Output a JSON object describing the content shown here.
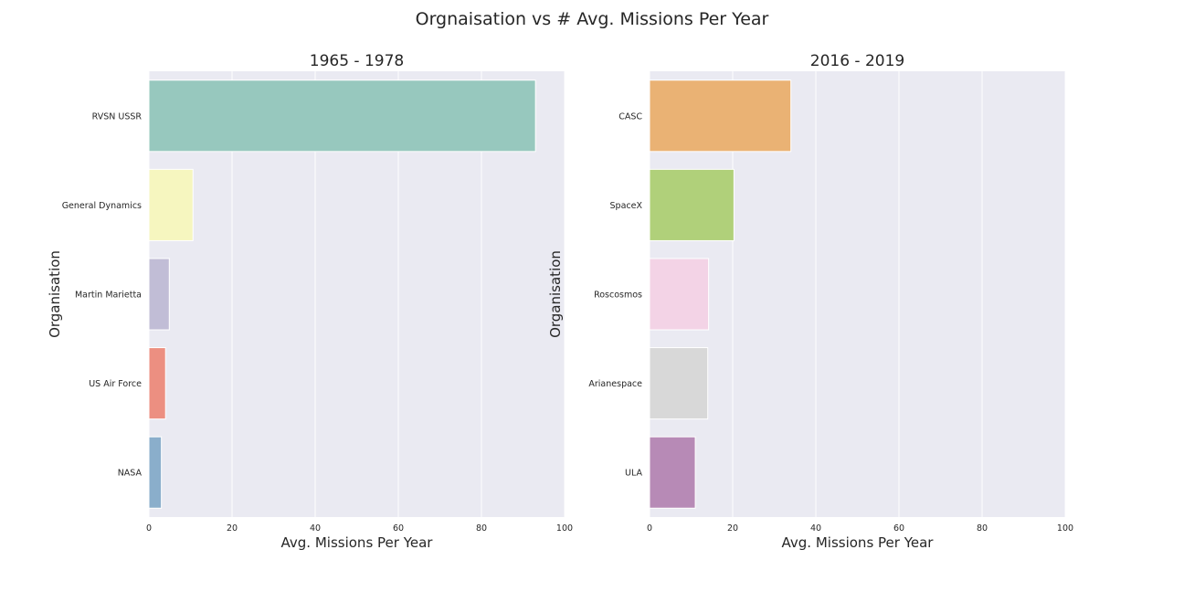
{
  "figure": {
    "title": "Orgnaisation vs # Avg. Missions Per Year"
  },
  "chart_data": [
    {
      "type": "bar",
      "orientation": "horizontal",
      "title": "1965 - 1978",
      "xlabel": "Avg. Missions Per Year",
      "ylabel": "Organisation",
      "categories": [
        "RVSN USSR",
        "General Dynamics",
        "Martin Marietta",
        "US Air Force",
        "NASA"
      ],
      "values": [
        93,
        10.6,
        4.9,
        4.0,
        3.0
      ],
      "colors": [
        "#97c8be",
        "#f6f6bf",
        "#c1bdd6",
        "#ec8f81",
        "#8aaecb"
      ],
      "xlim": [
        0,
        100
      ],
      "xticks": [
        0,
        20,
        40,
        60,
        80,
        100
      ],
      "grid": true
    },
    {
      "type": "bar",
      "orientation": "horizontal",
      "title": "2016 - 2019",
      "xlabel": "Avg. Missions Per Year",
      "ylabel": "Organisation",
      "categories": [
        "CASC",
        "SpaceX",
        "Roscosmos",
        "Arianespace",
        "ULA"
      ],
      "values": [
        34,
        20.3,
        14.2,
        14.0,
        11.0
      ],
      "colors": [
        "#eab274",
        "#b0d07a",
        "#f3d3e6",
        "#d8d8d8",
        "#b78ab6"
      ],
      "xlim": [
        0,
        100
      ],
      "xticks": [
        0,
        20,
        40,
        60,
        80,
        100
      ],
      "grid": true
    }
  ]
}
